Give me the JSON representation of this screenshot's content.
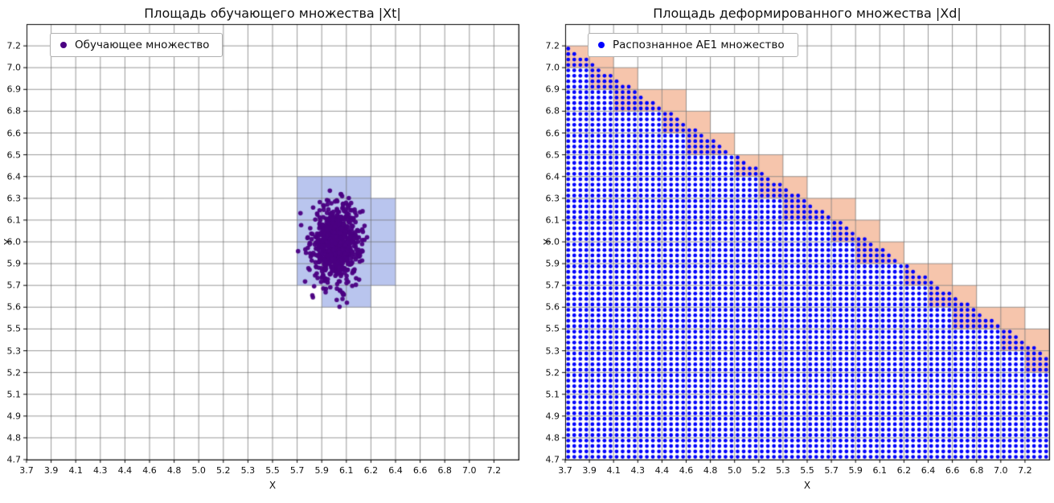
{
  "figure": {
    "background": "#ffffff",
    "grid_color": "#6e6e6e",
    "spine_color": "#000000"
  },
  "chart_data": [
    {
      "type": "scatter",
      "title": "Площадь обучающего множества |Xt|",
      "xlabel": "X",
      "ylabel": "Y",
      "x_tick_labels": [
        "3.7",
        "3.9",
        "4.1",
        "4.3",
        "4.4",
        "4.6",
        "4.8",
        "5.0",
        "5.2",
        "5.3",
        "5.5",
        "5.7",
        "5.9",
        "6.1",
        "6.2",
        "6.4",
        "6.6",
        "6.8",
        "7.0",
        "7.2"
      ],
      "y_tick_labels": [
        "4.7",
        "4.8",
        "4.9",
        "5.1",
        "5.2",
        "5.3",
        "5.5",
        "5.6",
        "5.7",
        "5.9",
        "6.0",
        "6.1",
        "6.3",
        "6.4",
        "6.5",
        "6.6",
        "6.8",
        "6.9",
        "7.0",
        "7.2"
      ],
      "x_range": [
        3.7,
        7.3842
      ],
      "y_range": [
        4.7,
        7.3316
      ],
      "grid": {
        "cols": 20,
        "rows": 20,
        "color": "#6e6e6e",
        "on": true
      },
      "legend": {
        "label": "Обучающее множество",
        "marker_color": "#4b0082",
        "position": "upper left"
      },
      "cluster": {
        "center": [
          6.02,
          6.01
        ],
        "std": [
          0.09,
          0.115
        ],
        "count": 800,
        "color": "#4b0082",
        "marker_px": 2.8,
        "seed": 1234
      },
      "highlight_cells": {
        "color": "#b9c5ee",
        "rects": [
          {
            "x0": 5.726,
            "y0": 6.279,
            "x1": 6.279,
            "y1": 6.411
          },
          {
            "x0": 5.726,
            "y0": 5.753,
            "x1": 6.463,
            "y1": 6.279
          },
          {
            "x0": 5.911,
            "y0": 5.621,
            "x1": 6.279,
            "y1": 5.753
          }
        ]
      }
    },
    {
      "type": "scatter",
      "title": "Площадь деформированного множества |Xd|",
      "xlabel": "X",
      "ylabel": "Y",
      "x_tick_labels": [
        "3.7",
        "3.9",
        "4.1",
        "4.3",
        "4.4",
        "4.6",
        "4.8",
        "5.0",
        "5.2",
        "5.3",
        "5.5",
        "5.7",
        "5.9",
        "6.1",
        "6.2",
        "6.4",
        "6.6",
        "6.8",
        "7.0",
        "7.2"
      ],
      "y_tick_labels": [
        "4.7",
        "4.8",
        "4.9",
        "5.1",
        "5.2",
        "5.3",
        "5.5",
        "5.6",
        "5.7",
        "5.9",
        "6.0",
        "6.1",
        "6.3",
        "6.4",
        "6.5",
        "6.6",
        "6.8",
        "6.9",
        "7.0",
        "7.2"
      ],
      "x_range": [
        3.7,
        7.3842
      ],
      "y_range": [
        4.7,
        7.3316
      ],
      "grid": {
        "cols": 20,
        "rows": 20,
        "color": "#6e6e6e",
        "on": true
      },
      "legend": {
        "label": "Распознанное АЕ1 множество",
        "marker_color": "#0000ff",
        "position": "upper left"
      },
      "lattice": {
        "color": "#0000ff",
        "marker_px": 2.4,
        "x_step": 0.04605,
        "y_step": 0.032895,
        "boundary_line": {
          "point": [
            3.7,
            7.2
          ],
          "slope": -0.51
        }
      },
      "boundary_cells": {
        "color": "#f6c5ac",
        "cells": [
          [
            0,
            18
          ],
          [
            1,
            17
          ],
          [
            1,
            18
          ],
          [
            2,
            16
          ],
          [
            2,
            17
          ],
          [
            3,
            16
          ],
          [
            4,
            15
          ],
          [
            4,
            16
          ],
          [
            5,
            14
          ],
          [
            5,
            15
          ],
          [
            6,
            14
          ],
          [
            7,
            13
          ],
          [
            8,
            12
          ],
          [
            8,
            13
          ],
          [
            9,
            11
          ],
          [
            9,
            12
          ],
          [
            10,
            11
          ],
          [
            11,
            10
          ],
          [
            11,
            11
          ],
          [
            12,
            9
          ],
          [
            12,
            10
          ],
          [
            13,
            9
          ],
          [
            14,
            8
          ],
          [
            15,
            7
          ],
          [
            15,
            8
          ],
          [
            16,
            6
          ],
          [
            16,
            7
          ],
          [
            17,
            6
          ],
          [
            18,
            5
          ],
          [
            18,
            6
          ],
          [
            19,
            4
          ],
          [
            19,
            5
          ]
        ]
      }
    }
  ]
}
